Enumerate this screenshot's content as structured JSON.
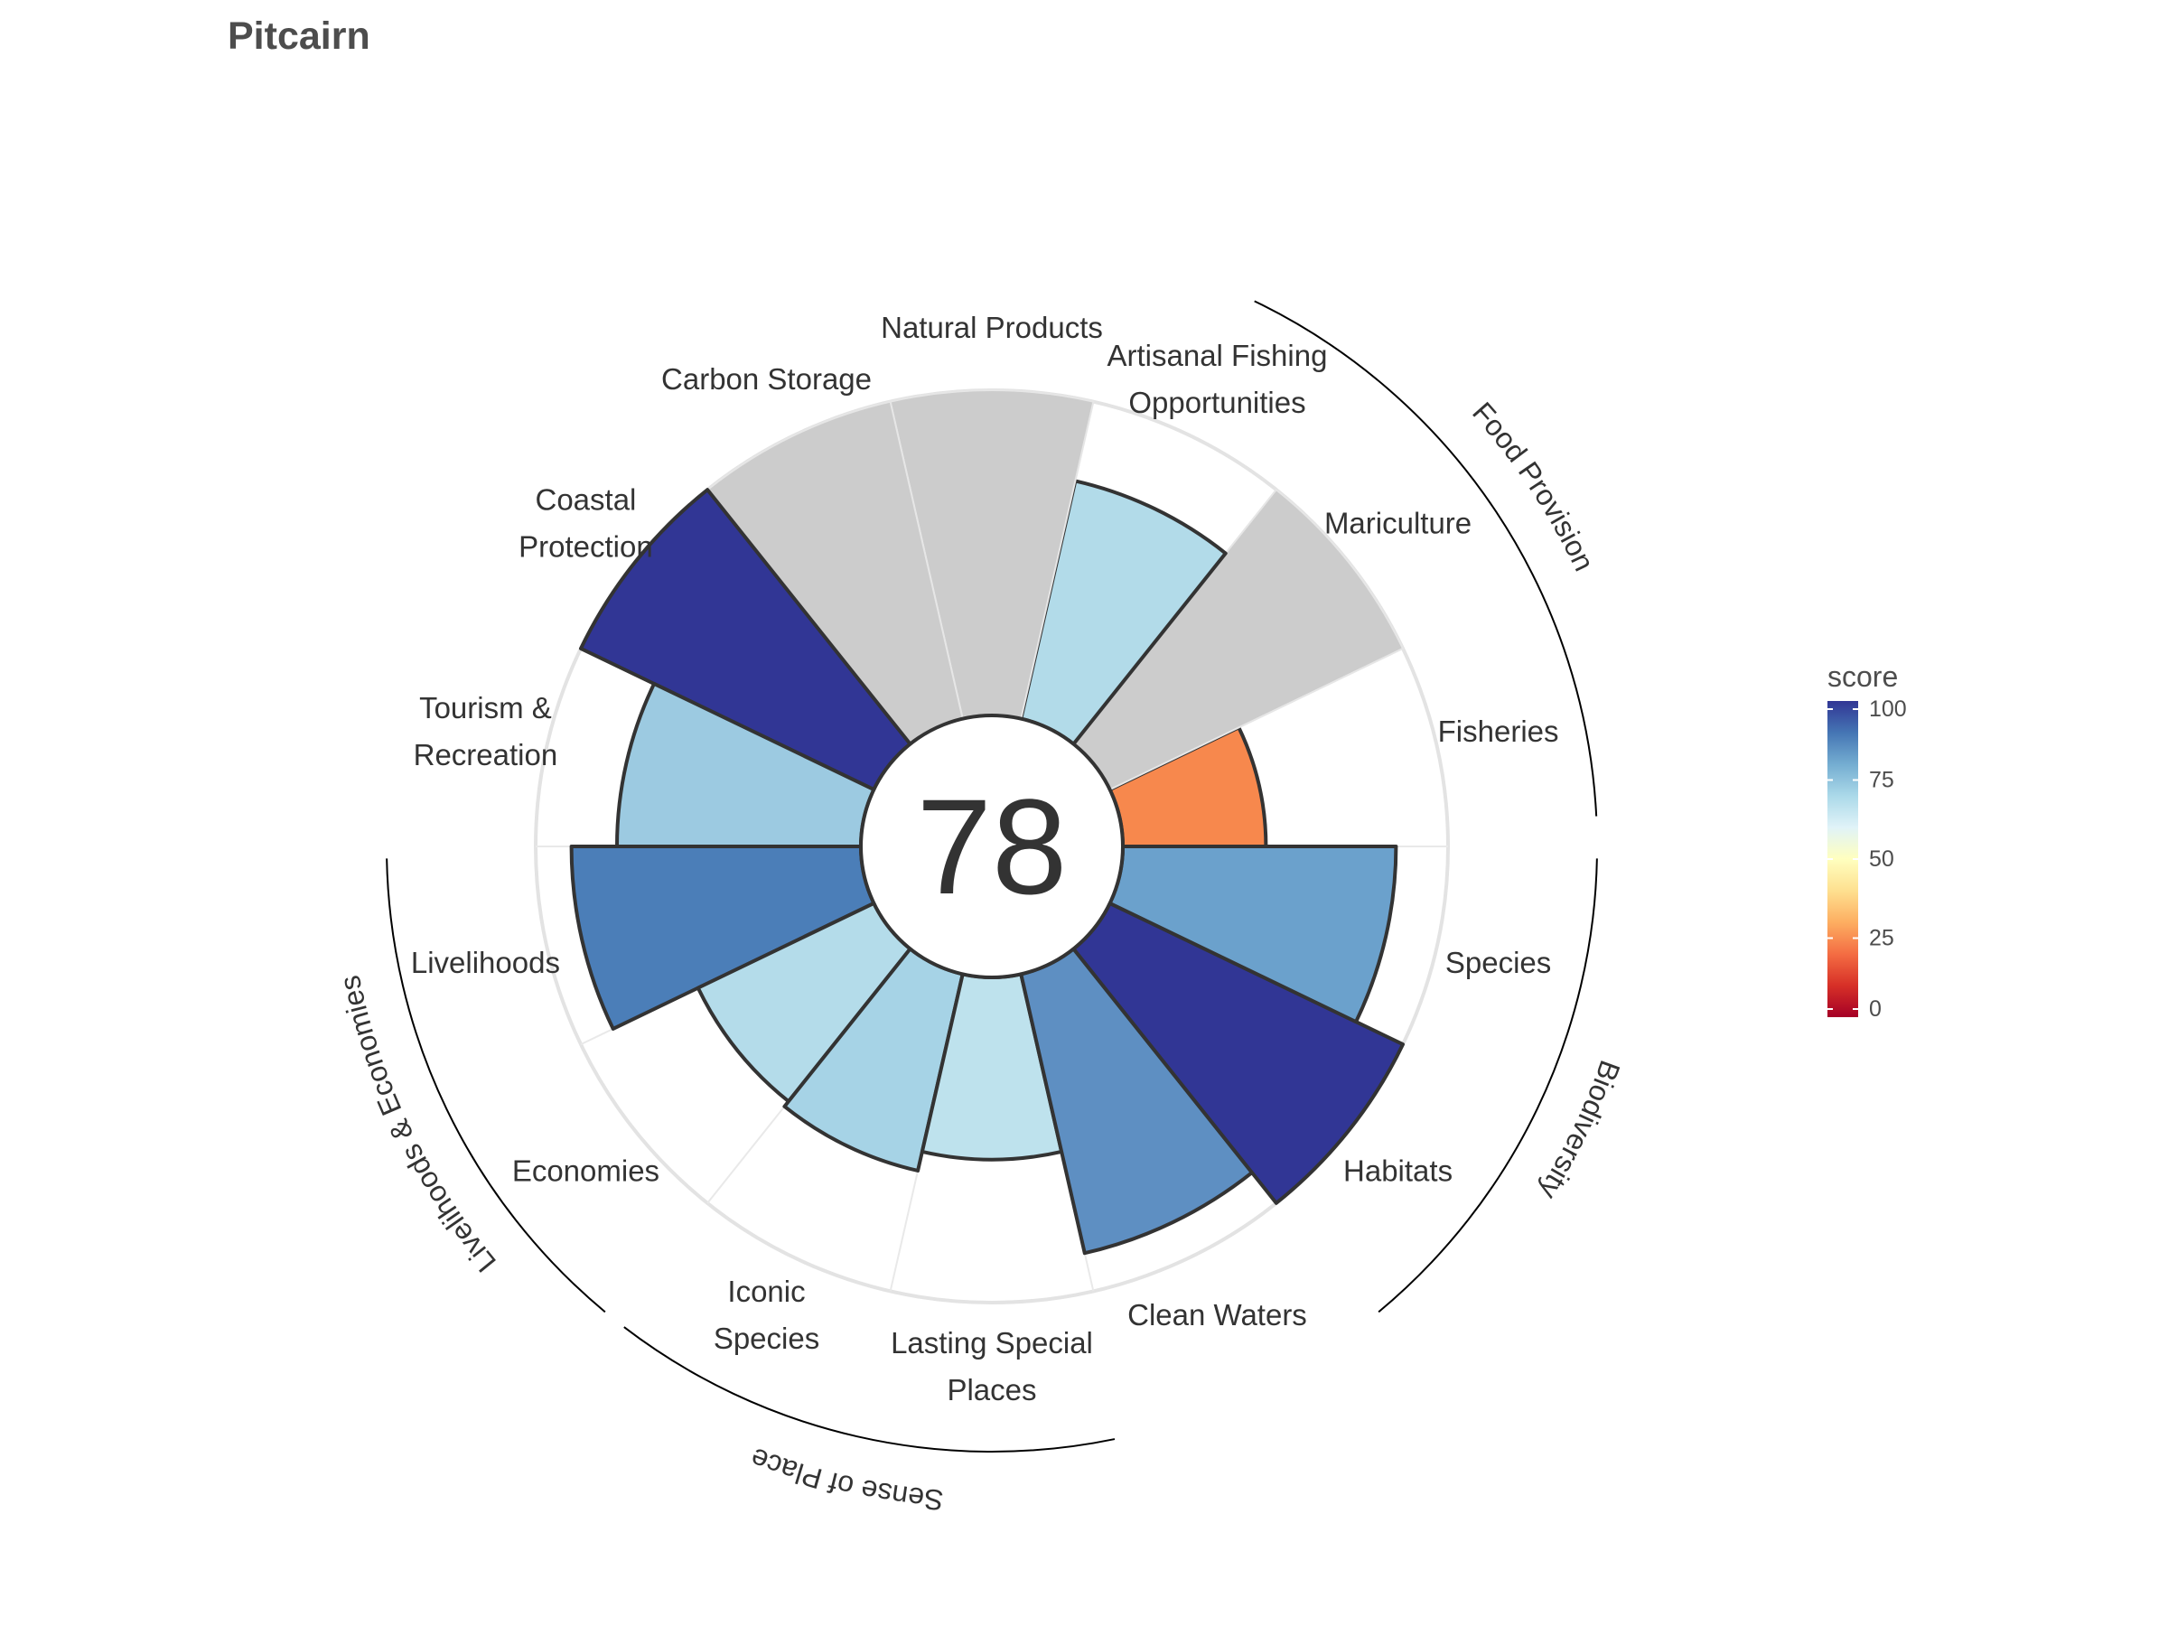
{
  "chart_data": {
    "type": "polar-bar",
    "title": "Pitcairn",
    "overall_score": "78",
    "rlim": [
      0,
      100
    ],
    "goals": [
      {
        "label": "Fisheries",
        "value": 44,
        "color": "#f7884d"
      },
      {
        "label": "Mariculture",
        "value": null,
        "color": null
      },
      {
        "label": "Artisanal Fishing Opportunities",
        "value": 75,
        "color": "#b2dbe9"
      },
      {
        "label": "Natural Products",
        "value": null,
        "color": null
      },
      {
        "label": "Carbon Storage",
        "value": null,
        "color": null
      },
      {
        "label": "Coastal Protection",
        "value": 100,
        "color": "#313695"
      },
      {
        "label": "Tourism & Recreation",
        "value": 75,
        "color": "#9ccae1"
      },
      {
        "label": "Livelihoods",
        "value": 89,
        "color": "#4b7eb8"
      },
      {
        "label": "Economies",
        "value": 60,
        "color": "#b4dcea"
      },
      {
        "label": "Iconic Species",
        "value": 62,
        "color": "#a6d3e6"
      },
      {
        "label": "Lasting Special Places",
        "value": 56,
        "color": "#bee2ed"
      },
      {
        "label": "Clean Waters",
        "value": 88,
        "color": "#5e8fc2"
      },
      {
        "label": "Habitats",
        "value": 100,
        "color": "#313695"
      },
      {
        "label": "Species",
        "value": 84,
        "color": "#6ba1cc"
      }
    ],
    "groups": [
      {
        "label": "Food Provision"
      },
      {
        "label": "Biodiversity"
      },
      {
        "label": "Sense of Place"
      },
      {
        "label": "Livelihoods & Economies"
      }
    ],
    "legend": {
      "title": "score",
      "ticks": [
        "100",
        "75",
        "50",
        "25",
        "0"
      ],
      "colors": [
        "#a50026",
        "#d73027",
        "#f46d43",
        "#fdae61",
        "#fee090",
        "#ffffbf",
        "#e0f3f8",
        "#abd9e9",
        "#74add1",
        "#4575b4",
        "#313695"
      ]
    },
    "missing_color": "#cccccc",
    "grid": true
  }
}
